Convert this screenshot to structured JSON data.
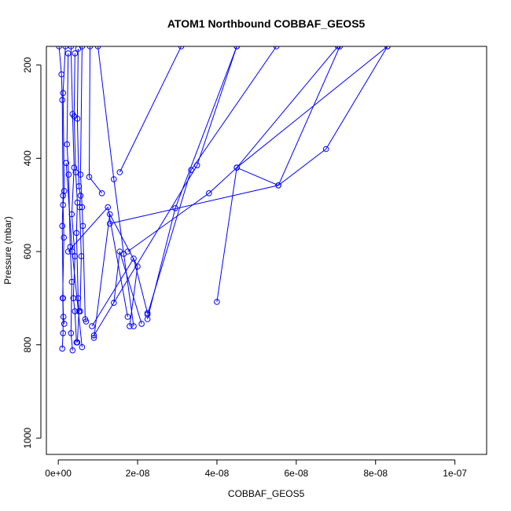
{
  "chart_data": {
    "type": "line",
    "title": "ATOM1 Northbound COBBAF_GEOS5",
    "xlabel": "COBBAF_GEOS5",
    "ylabel": "Pressure (mbar)",
    "xlim": [
      -3e-09,
      1.08e-07
    ],
    "ylim": [
      1035,
      160
    ],
    "y_reversed": true,
    "markers": "open-circle",
    "x_ticks": [
      {
        "value": 0,
        "label": "0e+00"
      },
      {
        "value": 2e-08,
        "label": "2e-08"
      },
      {
        "value": 4e-08,
        "label": "4e-08"
      },
      {
        "value": 6e-08,
        "label": "6e-08"
      },
      {
        "value": 8e-08,
        "label": "8e-08"
      },
      {
        "value": 1e-07,
        "label": "1e-07"
      }
    ],
    "y_ticks": [
      {
        "value": 200,
        "label": "200"
      },
      {
        "value": 400,
        "label": "400"
      },
      {
        "value": 600,
        "label": "600"
      },
      {
        "value": 800,
        "label": "800"
      },
      {
        "value": 1000,
        "label": "1000"
      }
    ],
    "color": "#0000ff",
    "series": [
      {
        "points": [
          [
            2e-10,
            160
          ],
          [
            8e-10,
            220
          ],
          [
            1e-09,
            275
          ],
          [
            1.2e-09,
            480
          ],
          [
            1e-09,
            545
          ],
          [
            1.2e-09,
            700
          ],
          [
            1.2e-09,
            775
          ],
          [
            1e-09,
            808
          ]
        ]
      },
      {
        "points": [
          [
            1.8e-09,
            160
          ],
          [
            1.2e-09,
            260
          ],
          [
            1.5e-09,
            470
          ],
          [
            1.2e-09,
            500
          ],
          [
            1.4e-09,
            570
          ],
          [
            1.1e-09,
            700
          ],
          [
            1.3e-09,
            740
          ],
          [
            1.5e-09,
            755
          ]
        ]
      },
      {
        "points": [
          [
            2.5e-09,
            175
          ],
          [
            2.2e-09,
            370
          ],
          [
            2.6e-09,
            435
          ],
          [
            3e-09,
            590
          ],
          [
            3.4e-09,
            665
          ],
          [
            3.2e-09,
            775
          ],
          [
            3.6e-09,
            812
          ]
        ]
      },
      {
        "points": [
          [
            3.2e-09,
            160
          ],
          [
            3.6e-09,
            305
          ],
          [
            4e-09,
            420
          ],
          [
            3.4e-09,
            520
          ],
          [
            4.2e-09,
            610
          ],
          [
            3.8e-09,
            700
          ],
          [
            4.2e-09,
            728
          ],
          [
            4.6e-09,
            795
          ]
        ]
      },
      {
        "points": [
          [
            4.2e-09,
            175
          ],
          [
            4e-09,
            310
          ],
          [
            4.4e-09,
            430
          ],
          [
            4.8e-09,
            495
          ],
          [
            4.6e-09,
            560
          ],
          [
            5e-09,
            700
          ],
          [
            5.2e-09,
            728
          ],
          [
            4.8e-09,
            795
          ]
        ]
      },
      {
        "points": [
          [
            5e-09,
            165
          ],
          [
            4.8e-09,
            315
          ],
          [
            5.2e-09,
            460
          ],
          [
            5.6e-09,
            480
          ],
          [
            5.4e-09,
            505
          ],
          [
            5.8e-09,
            610
          ],
          [
            5.5e-09,
            728
          ]
        ]
      },
      {
        "points": [
          [
            6e-09,
            160
          ],
          [
            5.6e-09,
            435
          ],
          [
            6e-09,
            505
          ],
          [
            6.2e-09,
            545
          ],
          [
            6.8e-09,
            745
          ],
          [
            7e-09,
            750
          ]
        ]
      },
      {
        "points": [
          [
            8e-09,
            160
          ],
          [
            7.8e-09,
            440
          ],
          [
            1.1e-08,
            475
          ]
        ]
      },
      {
        "points": [
          [
            1e-08,
            160
          ],
          [
            1.4e-08,
            445
          ],
          [
            1.65e-08,
            605
          ],
          [
            1.9e-08,
            760
          ]
        ]
      },
      {
        "points": [
          [
            2e-09,
            410
          ],
          [
            3.5e-09,
            600
          ],
          [
            6e-09,
            805
          ]
        ]
      },
      {
        "points": [
          [
            1.55e-08,
            430
          ],
          [
            3.1e-08,
            160
          ]
        ]
      },
      {
        "points": [
          [
            2.5e-09,
            600
          ],
          [
            1.25e-08,
            505
          ],
          [
            1.75e-08,
            740
          ]
        ]
      },
      {
        "points": [
          [
            9e-09,
            785
          ],
          [
            1.3e-08,
            520
          ],
          [
            2e-08,
            632
          ],
          [
            1.8e-08,
            760
          ]
        ]
      },
      {
        "points": [
          [
            1.4e-08,
            710
          ],
          [
            1.55e-08,
            600
          ],
          [
            2.1e-08,
            755
          ]
        ]
      },
      {
        "points": [
          [
            8.5e-09,
            760
          ],
          [
            1.9e-08,
            615
          ],
          [
            2.25e-08,
            732
          ]
        ]
      },
      {
        "points": [
          [
            2.25e-08,
            745
          ],
          [
            2.95e-08,
            507
          ],
          [
            4.5e-08,
            160
          ]
        ]
      },
      {
        "points": [
          [
            2.25e-08,
            735
          ],
          [
            3.35e-08,
            425
          ],
          [
            5.5e-08,
            160
          ]
        ]
      },
      {
        "points": [
          [
            1.75e-08,
            600
          ],
          [
            3.8e-08,
            475
          ],
          [
            4.5e-08,
            420
          ],
          [
            7.05e-08,
            160
          ]
        ]
      },
      {
        "points": [
          [
            9e-09,
            780
          ],
          [
            3.5e-08,
            415
          ],
          [
            4.5e-08,
            160
          ]
        ]
      },
      {
        "points": [
          [
            4e-08,
            708
          ],
          [
            4.5e-08,
            420
          ],
          [
            5.55e-08,
            458
          ],
          [
            7.1e-08,
            160
          ]
        ]
      },
      {
        "points": [
          [
            1.3e-08,
            540
          ],
          [
            5.55e-08,
            458
          ],
          [
            6.75e-08,
            380
          ],
          [
            8.3e-08,
            160
          ]
        ]
      },
      {
        "points": [
          [
            4.5e-08,
            420
          ],
          [
            8.3e-08,
            160
          ]
        ]
      }
    ]
  }
}
